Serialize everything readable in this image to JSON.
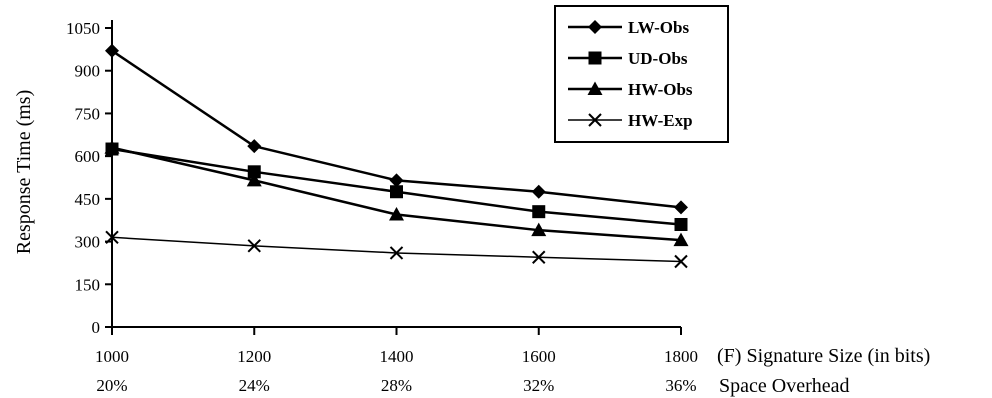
{
  "chart_data": {
    "type": "line",
    "title": "",
    "ylabel": "Response Time (ms)",
    "xlabel": "(F) Signature Size (in bits)",
    "x2label": "Space Overhead",
    "x": [
      1000,
      1200,
      1400,
      1600,
      1800
    ],
    "x_tick_labels": [
      "1000",
      "1200",
      "1400",
      "1600",
      "1800"
    ],
    "x2_tick_labels": [
      "20%",
      "24%",
      "28%",
      "32%",
      "36%"
    ],
    "y_ticks": [
      0,
      150,
      300,
      450,
      600,
      750,
      900,
      1050
    ],
    "y_tick_labels": [
      "0",
      "150",
      "300",
      "450",
      "600",
      "750",
      "900",
      "1050"
    ],
    "ylim": [
      0,
      1050
    ],
    "grid": false,
    "legend_position": "top-right",
    "series": [
      {
        "name": "LW-Obs",
        "marker": "diamond",
        "values": [
          970,
          635,
          515,
          475,
          420
        ]
      },
      {
        "name": "UD-Obs",
        "marker": "square",
        "values": [
          625,
          545,
          475,
          405,
          360
        ]
      },
      {
        "name": "HW-Obs",
        "marker": "triangle",
        "values": [
          630,
          515,
          395,
          340,
          305
        ]
      },
      {
        "name": "HW-Exp",
        "marker": "x",
        "values": [
          315,
          285,
          260,
          245,
          230
        ]
      }
    ]
  }
}
